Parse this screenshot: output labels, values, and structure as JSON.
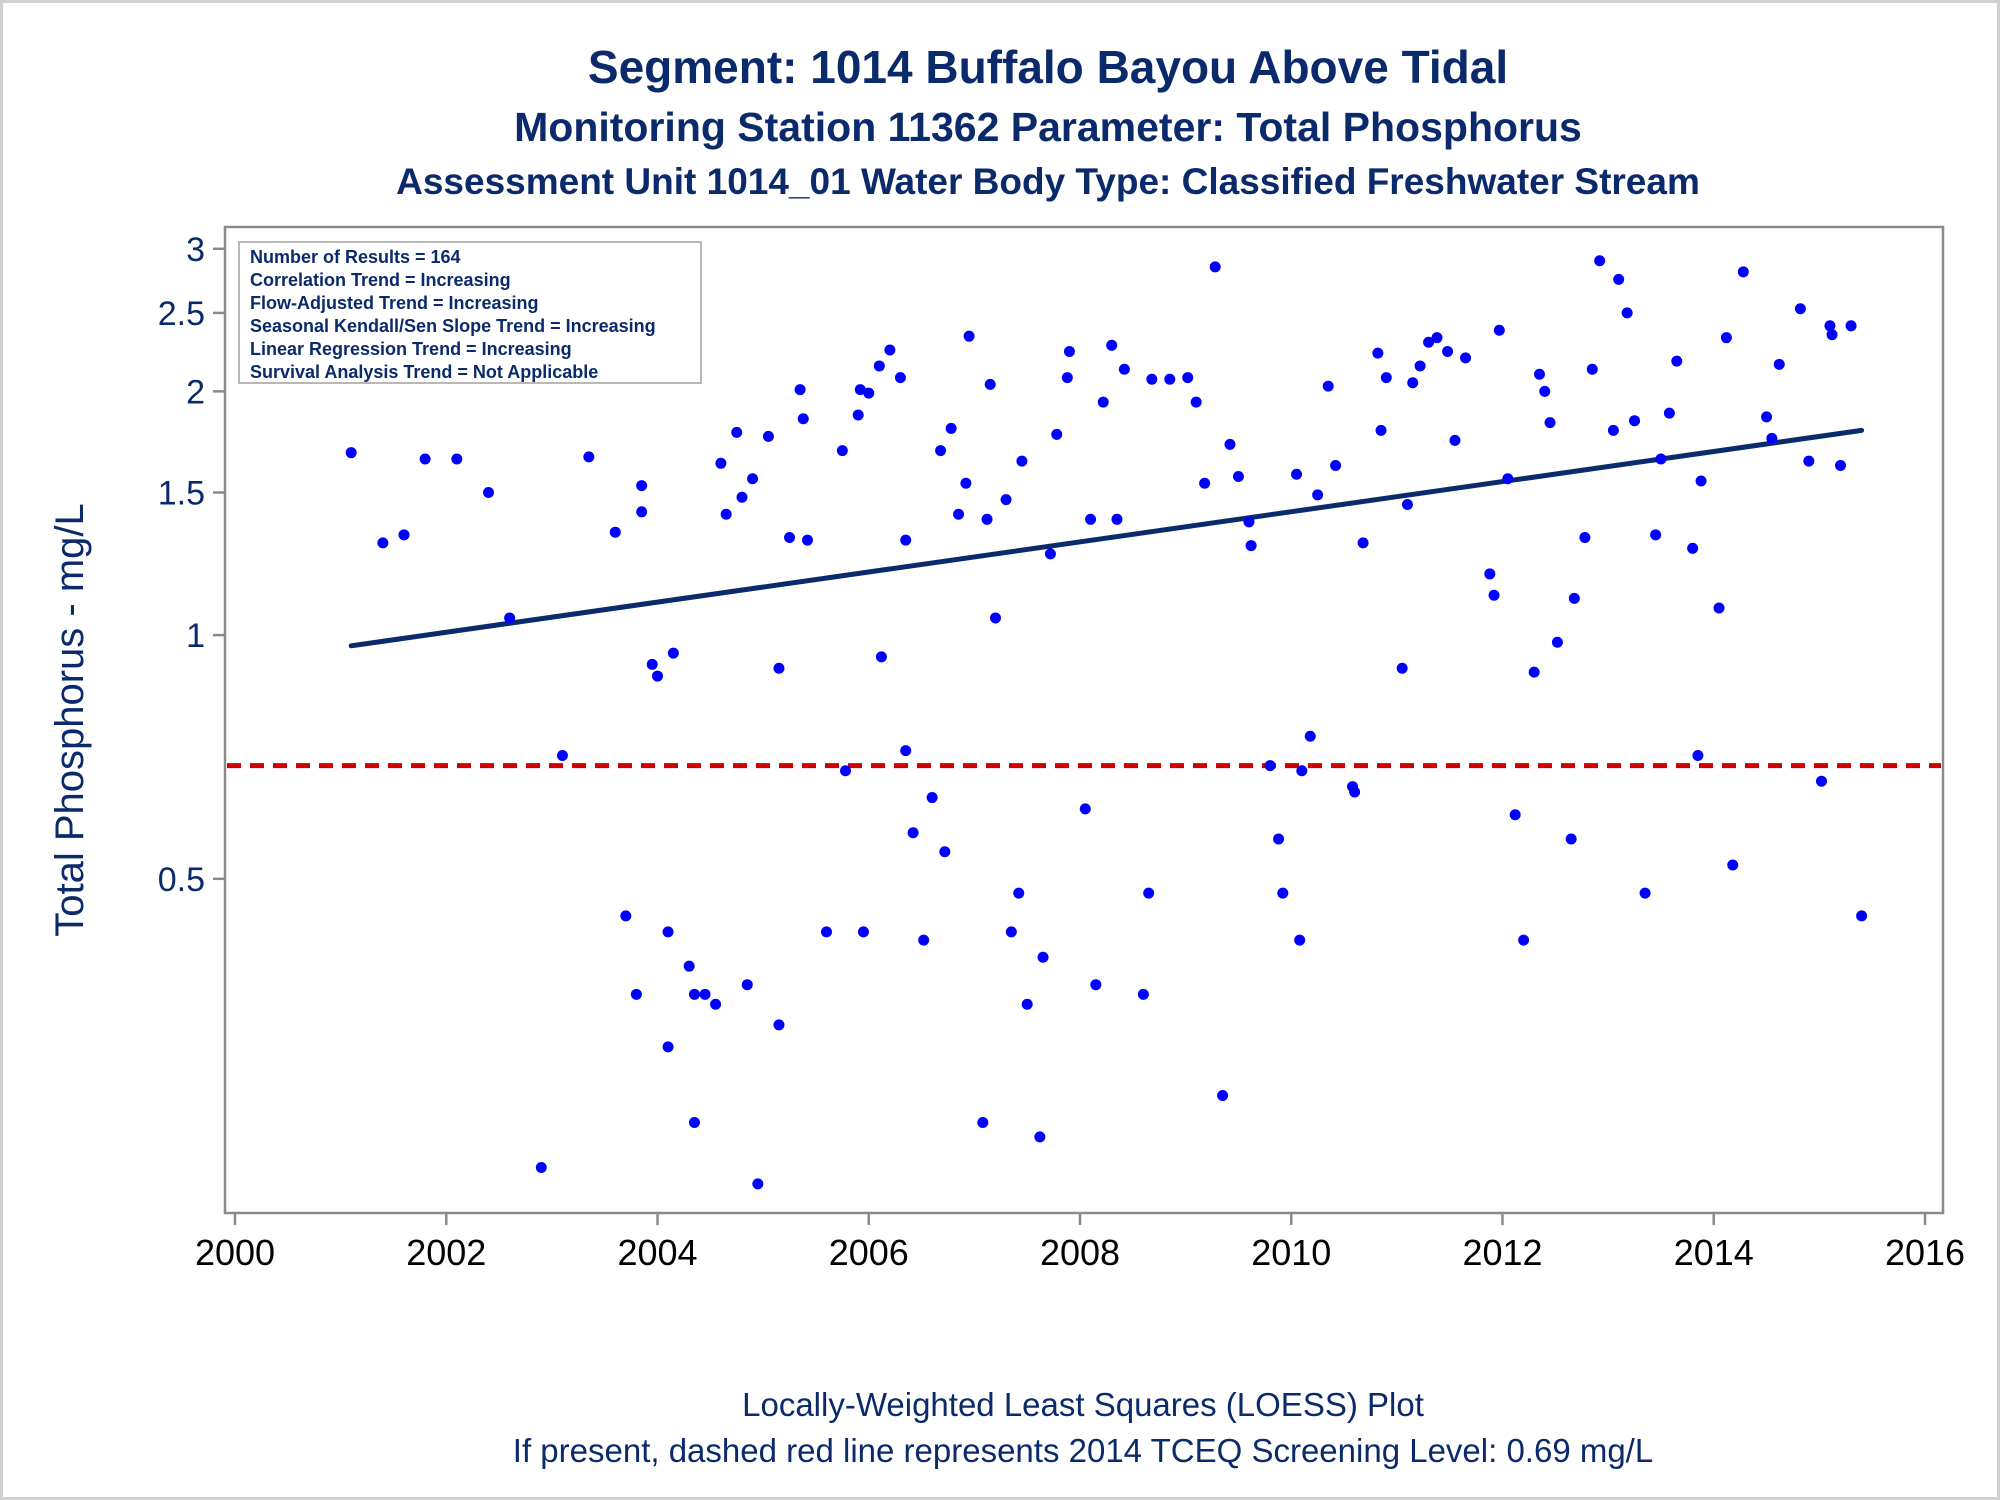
{
  "titles": {
    "line1": "Segment: 1014  Buffalo Bayou Above Tidal",
    "line2": "Monitoring Station 11362 Parameter: Total Phosphorus",
    "line3": "Assessment Unit 1014_01   Water Body Type: Classified Freshwater Stream"
  },
  "legend": {
    "lines": [
      "Number of Results = 164",
      "Correlation Trend = Increasing",
      "Flow-Adjusted Trend = Increasing",
      "Seasonal Kendall/Sen Slope Trend = Increasing",
      "Linear Regression Trend = Increasing",
      "Survival Analysis Trend = Not Applicable"
    ]
  },
  "footnotes": {
    "line1": "Locally-Weighted Least Squares (LOESS) Plot",
    "line2": "If present, dashed red line represents 2014 TCEQ Screening Level: 0.69 mg/L"
  },
  "colors": {
    "points": "#0000ff",
    "trend": "#0b2a6b",
    "screening": "#d10000",
    "text": "#0b2a6b"
  },
  "chart_data": {
    "type": "scatter",
    "ylabel": "Total Phosphorus - mg/L",
    "xlabel": "",
    "y_scale": "log",
    "xlim": [
      2000,
      2016
    ],
    "ylim": [
      0.2,
      3.05
    ],
    "x_ticks": [
      2000,
      2002,
      2004,
      2006,
      2008,
      2010,
      2012,
      2014,
      2016
    ],
    "x_tick_labels": [
      "2000",
      "2002",
      "2004",
      "2006",
      "2008",
      "2010",
      "2012",
      "2014",
      "2016"
    ],
    "y_ticks": [
      0.5,
      1,
      1.5,
      2,
      2.5,
      3
    ],
    "y_tick_labels": [
      "0.5",
      "1",
      "1.5",
      "2",
      "2.5",
      "3"
    ],
    "grid": false,
    "legend_position": "top-left",
    "screening_level": 0.69,
    "trend_line": {
      "x": [
        2001.1,
        2015.4
      ],
      "y": [
        0.97,
        1.79
      ]
    },
    "points": [
      [
        2001.1,
        1.68
      ],
      [
        2001.4,
        1.3
      ],
      [
        2001.6,
        1.33
      ],
      [
        2001.8,
        1.65
      ],
      [
        2002.1,
        1.65
      ],
      [
        2002.4,
        1.5
      ],
      [
        2002.6,
        1.05
      ],
      [
        2002.9,
        0.22
      ],
      [
        2003.1,
        0.71
      ],
      [
        2003.35,
        1.66
      ],
      [
        2003.6,
        1.34
      ],
      [
        2003.7,
        0.45
      ],
      [
        2003.8,
        0.36
      ],
      [
        2003.85,
        1.53
      ],
      [
        2003.85,
        1.42
      ],
      [
        2003.95,
        0.92
      ],
      [
        2004.0,
        0.89
      ],
      [
        2004.1,
        0.43
      ],
      [
        2004.1,
        0.31
      ],
      [
        2004.15,
        0.95
      ],
      [
        2004.3,
        0.39
      ],
      [
        2004.35,
        0.36
      ],
      [
        2004.35,
        0.25
      ],
      [
        2004.45,
        0.36
      ],
      [
        2004.55,
        0.35
      ],
      [
        2004.6,
        1.63
      ],
      [
        2004.65,
        1.41
      ],
      [
        2004.75,
        1.78
      ],
      [
        2004.8,
        1.48
      ],
      [
        2004.85,
        0.37
      ],
      [
        2004.9,
        1.56
      ],
      [
        2004.95,
        0.21
      ],
      [
        2005.05,
        1.76
      ],
      [
        2005.15,
        0.91
      ],
      [
        2005.15,
        0.33
      ],
      [
        2005.25,
        1.32
      ],
      [
        2005.35,
        2.01
      ],
      [
        2005.38,
        1.85
      ],
      [
        2005.42,
        1.31
      ],
      [
        2005.6,
        0.43
      ],
      [
        2005.75,
        1.69
      ],
      [
        2005.78,
        0.68
      ],
      [
        2005.9,
        1.87
      ],
      [
        2005.92,
        2.01
      ],
      [
        2005.95,
        0.43
      ],
      [
        2006.0,
        1.99
      ],
      [
        2006.1,
        2.15
      ],
      [
        2006.12,
        0.94
      ],
      [
        2006.2,
        2.25
      ],
      [
        2006.3,
        2.08
      ],
      [
        2006.35,
        1.31
      ],
      [
        2006.35,
        0.72
      ],
      [
        2006.42,
        0.57
      ],
      [
        2006.52,
        0.42
      ],
      [
        2006.6,
        0.63
      ],
      [
        2006.68,
        1.69
      ],
      [
        2006.72,
        0.54
      ],
      [
        2006.78,
        1.8
      ],
      [
        2006.85,
        1.41
      ],
      [
        2006.92,
        1.54
      ],
      [
        2006.95,
        2.34
      ],
      [
        2007.08,
        0.25
      ],
      [
        2007.12,
        1.39
      ],
      [
        2007.15,
        2.04
      ],
      [
        2007.2,
        1.05
      ],
      [
        2007.3,
        1.47
      ],
      [
        2007.35,
        0.43
      ],
      [
        2007.42,
        0.48
      ],
      [
        2007.45,
        1.64
      ],
      [
        2007.5,
        0.35
      ],
      [
        2007.62,
        0.24
      ],
      [
        2007.65,
        0.4
      ],
      [
        2007.72,
        1.26
      ],
      [
        2007.78,
        1.77
      ],
      [
        2007.88,
        2.08
      ],
      [
        2007.9,
        2.24
      ],
      [
        2008.05,
        0.61
      ],
      [
        2008.1,
        1.39
      ],
      [
        2008.15,
        0.37
      ],
      [
        2008.22,
        1.94
      ],
      [
        2008.3,
        2.28
      ],
      [
        2008.35,
        1.39
      ],
      [
        2008.42,
        2.13
      ],
      [
        2008.6,
        0.36
      ],
      [
        2008.65,
        0.48
      ],
      [
        2008.68,
        2.07
      ],
      [
        2008.85,
        2.07
      ],
      [
        2009.02,
        2.08
      ],
      [
        2009.1,
        1.94
      ],
      [
        2009.18,
        1.54
      ],
      [
        2009.28,
        2.85
      ],
      [
        2009.35,
        0.27
      ],
      [
        2009.42,
        1.72
      ],
      [
        2009.5,
        1.57
      ],
      [
        2009.6,
        1.38
      ],
      [
        2009.62,
        1.29
      ],
      [
        2009.8,
        0.69
      ],
      [
        2009.88,
        0.56
      ],
      [
        2009.92,
        0.48
      ],
      [
        2010.05,
        1.58
      ],
      [
        2010.08,
        0.42
      ],
      [
        2010.1,
        0.68
      ],
      [
        2010.18,
        0.75
      ],
      [
        2010.25,
        1.49
      ],
      [
        2010.35,
        2.03
      ],
      [
        2010.42,
        1.62
      ],
      [
        2010.58,
        0.65
      ],
      [
        2010.6,
        0.64
      ],
      [
        2010.68,
        1.3
      ],
      [
        2010.82,
        2.23
      ],
      [
        2010.85,
        1.79
      ],
      [
        2010.9,
        2.08
      ],
      [
        2011.05,
        0.91
      ],
      [
        2011.1,
        1.45
      ],
      [
        2011.15,
        2.05
      ],
      [
        2011.22,
        2.15
      ],
      [
        2011.3,
        2.3
      ],
      [
        2011.38,
        2.33
      ],
      [
        2011.48,
        2.24
      ],
      [
        2011.55,
        1.74
      ],
      [
        2011.65,
        2.2
      ],
      [
        2011.88,
        1.19
      ],
      [
        2011.92,
        1.12
      ],
      [
        2011.97,
        2.38
      ],
      [
        2012.05,
        1.56
      ],
      [
        2012.12,
        0.6
      ],
      [
        2012.2,
        0.42
      ],
      [
        2012.3,
        0.9
      ],
      [
        2012.35,
        2.1
      ],
      [
        2012.4,
        2.0
      ],
      [
        2012.45,
        1.83
      ],
      [
        2012.52,
        0.98
      ],
      [
        2012.65,
        0.56
      ],
      [
        2012.68,
        1.11
      ],
      [
        2012.78,
        1.32
      ],
      [
        2012.85,
        2.13
      ],
      [
        2012.92,
        2.9
      ],
      [
        2013.05,
        1.79
      ],
      [
        2013.1,
        2.75
      ],
      [
        2013.18,
        2.5
      ],
      [
        2013.25,
        1.84
      ],
      [
        2013.35,
        0.48
      ],
      [
        2013.45,
        1.33
      ],
      [
        2013.5,
        1.65
      ],
      [
        2013.58,
        1.88
      ],
      [
        2013.65,
        2.18
      ],
      [
        2013.8,
        1.28
      ],
      [
        2013.85,
        0.71
      ],
      [
        2013.88,
        1.55
      ],
      [
        2014.05,
        1.08
      ],
      [
        2014.12,
        2.33
      ],
      [
        2014.18,
        0.52
      ],
      [
        2014.28,
        2.81
      ],
      [
        2014.5,
        1.86
      ],
      [
        2014.55,
        1.75
      ],
      [
        2014.62,
        2.16
      ],
      [
        2014.82,
        2.53
      ],
      [
        2014.9,
        1.64
      ],
      [
        2015.02,
        0.66
      ],
      [
        2015.1,
        2.41
      ],
      [
        2015.12,
        2.35
      ],
      [
        2015.2,
        1.62
      ],
      [
        2015.3,
        2.41
      ],
      [
        2015.4,
        0.45
      ]
    ]
  }
}
